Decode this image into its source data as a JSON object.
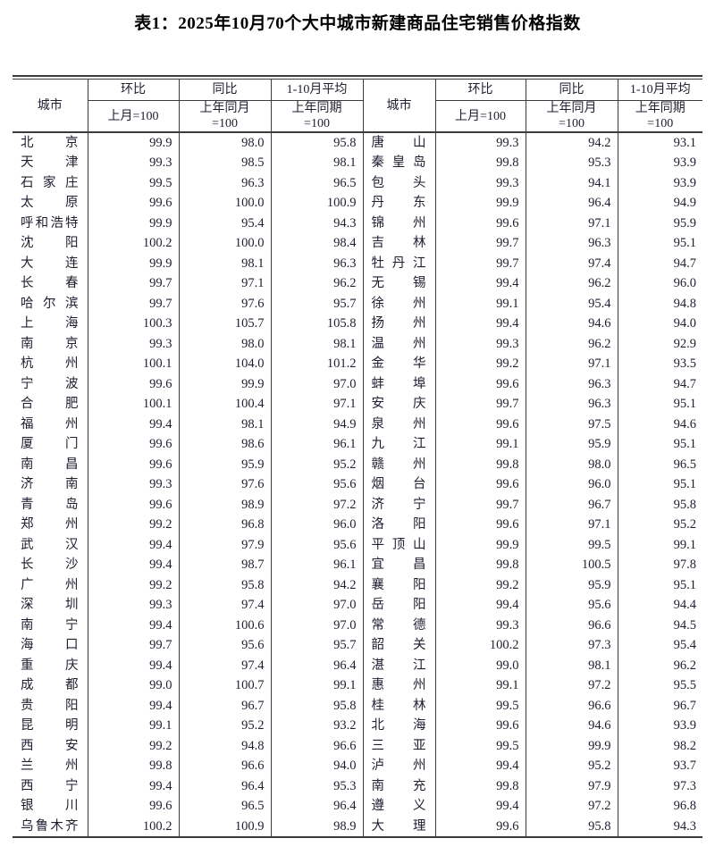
{
  "title": "表1：2025年10月70个大中城市新建商品住宅销售价格指数",
  "columns": {
    "city": "城市",
    "mom": {
      "top": "环比",
      "base": "上月=100"
    },
    "yoy": {
      "top": "同比",
      "base": "上年同月\n=100"
    },
    "avg": {
      "top": "1-10月平均",
      "base": "上年同期\n=100"
    }
  },
  "rows": [
    {
      "left": {
        "city": "北京",
        "mom": "99.9",
        "yoy": "98.0",
        "avg": "95.8"
      },
      "right": {
        "city": "唐山",
        "mom": "99.3",
        "yoy": "94.2",
        "avg": "93.1"
      }
    },
    {
      "left": {
        "city": "天津",
        "mom": "99.3",
        "yoy": "98.5",
        "avg": "98.1"
      },
      "right": {
        "city": "秦皇岛",
        "mom": "99.8",
        "yoy": "95.3",
        "avg": "93.9"
      }
    },
    {
      "left": {
        "city": "石家庄",
        "mom": "99.5",
        "yoy": "96.3",
        "avg": "96.5"
      },
      "right": {
        "city": "包头",
        "mom": "99.3",
        "yoy": "94.1",
        "avg": "93.9"
      }
    },
    {
      "left": {
        "city": "太原",
        "mom": "99.6",
        "yoy": "100.0",
        "avg": "100.9"
      },
      "right": {
        "city": "丹东",
        "mom": "99.9",
        "yoy": "96.4",
        "avg": "94.9"
      }
    },
    {
      "left": {
        "city": "呼和浩特",
        "mom": "99.9",
        "yoy": "95.4",
        "avg": "94.3"
      },
      "right": {
        "city": "锦州",
        "mom": "99.6",
        "yoy": "97.1",
        "avg": "95.9"
      }
    },
    {
      "left": {
        "city": "沈阳",
        "mom": "100.2",
        "yoy": "100.0",
        "avg": "98.4"
      },
      "right": {
        "city": "吉林",
        "mom": "99.7",
        "yoy": "96.3",
        "avg": "95.1"
      }
    },
    {
      "left": {
        "city": "大连",
        "mom": "99.9",
        "yoy": "98.1",
        "avg": "96.3"
      },
      "right": {
        "city": "牡丹江",
        "mom": "99.7",
        "yoy": "97.4",
        "avg": "94.7"
      }
    },
    {
      "left": {
        "city": "长春",
        "mom": "99.7",
        "yoy": "97.1",
        "avg": "96.2"
      },
      "right": {
        "city": "无锡",
        "mom": "99.4",
        "yoy": "96.2",
        "avg": "96.0"
      }
    },
    {
      "left": {
        "city": "哈尔滨",
        "mom": "99.7",
        "yoy": "97.6",
        "avg": "95.7"
      },
      "right": {
        "city": "徐州",
        "mom": "99.1",
        "yoy": "95.4",
        "avg": "94.8"
      }
    },
    {
      "left": {
        "city": "上海",
        "mom": "100.3",
        "yoy": "105.7",
        "avg": "105.8"
      },
      "right": {
        "city": "扬州",
        "mom": "99.4",
        "yoy": "94.6",
        "avg": "94.0"
      }
    },
    {
      "left": {
        "city": "南京",
        "mom": "99.3",
        "yoy": "98.0",
        "avg": "98.1"
      },
      "right": {
        "city": "温州",
        "mom": "99.3",
        "yoy": "96.2",
        "avg": "92.9"
      }
    },
    {
      "left": {
        "city": "杭州",
        "mom": "100.1",
        "yoy": "104.0",
        "avg": "101.2"
      },
      "right": {
        "city": "金华",
        "mom": "99.2",
        "yoy": "97.1",
        "avg": "93.5"
      }
    },
    {
      "left": {
        "city": "宁波",
        "mom": "99.6",
        "yoy": "99.9",
        "avg": "97.0"
      },
      "right": {
        "city": "蚌埠",
        "mom": "99.6",
        "yoy": "96.3",
        "avg": "94.7"
      }
    },
    {
      "left": {
        "city": "合肥",
        "mom": "100.1",
        "yoy": "100.4",
        "avg": "97.1"
      },
      "right": {
        "city": "安庆",
        "mom": "99.7",
        "yoy": "96.3",
        "avg": "95.1"
      }
    },
    {
      "left": {
        "city": "福州",
        "mom": "99.4",
        "yoy": "98.1",
        "avg": "94.9"
      },
      "right": {
        "city": "泉州",
        "mom": "99.6",
        "yoy": "97.5",
        "avg": "94.6"
      }
    },
    {
      "left": {
        "city": "厦门",
        "mom": "99.6",
        "yoy": "98.6",
        "avg": "96.1"
      },
      "right": {
        "city": "九江",
        "mom": "99.1",
        "yoy": "95.9",
        "avg": "95.1"
      }
    },
    {
      "left": {
        "city": "南昌",
        "mom": "99.6",
        "yoy": "95.9",
        "avg": "95.2"
      },
      "right": {
        "city": "赣州",
        "mom": "99.8",
        "yoy": "98.0",
        "avg": "96.5"
      }
    },
    {
      "left": {
        "city": "济南",
        "mom": "99.3",
        "yoy": "97.6",
        "avg": "95.6"
      },
      "right": {
        "city": "烟台",
        "mom": "99.6",
        "yoy": "96.0",
        "avg": "95.1"
      }
    },
    {
      "left": {
        "city": "青岛",
        "mom": "99.6",
        "yoy": "98.9",
        "avg": "97.2"
      },
      "right": {
        "city": "济宁",
        "mom": "99.7",
        "yoy": "96.7",
        "avg": "95.8"
      }
    },
    {
      "left": {
        "city": "郑州",
        "mom": "99.2",
        "yoy": "96.8",
        "avg": "96.0"
      },
      "right": {
        "city": "洛阳",
        "mom": "99.6",
        "yoy": "97.1",
        "avg": "95.2"
      }
    },
    {
      "left": {
        "city": "武汉",
        "mom": "99.4",
        "yoy": "97.9",
        "avg": "95.6"
      },
      "right": {
        "city": "平顶山",
        "mom": "99.9",
        "yoy": "99.5",
        "avg": "99.1"
      }
    },
    {
      "left": {
        "city": "长沙",
        "mom": "99.4",
        "yoy": "98.7",
        "avg": "96.1"
      },
      "right": {
        "city": "宜昌",
        "mom": "99.8",
        "yoy": "100.5",
        "avg": "97.8"
      }
    },
    {
      "left": {
        "city": "广州",
        "mom": "99.2",
        "yoy": "95.8",
        "avg": "94.2"
      },
      "right": {
        "city": "襄阳",
        "mom": "99.2",
        "yoy": "95.9",
        "avg": "95.1"
      }
    },
    {
      "left": {
        "city": "深圳",
        "mom": "99.3",
        "yoy": "97.4",
        "avg": "97.0"
      },
      "right": {
        "city": "岳阳",
        "mom": "99.4",
        "yoy": "95.6",
        "avg": "94.4"
      }
    },
    {
      "left": {
        "city": "南宁",
        "mom": "99.4",
        "yoy": "100.6",
        "avg": "97.0"
      },
      "right": {
        "city": "常德",
        "mom": "99.3",
        "yoy": "96.6",
        "avg": "94.5"
      }
    },
    {
      "left": {
        "city": "海口",
        "mom": "99.7",
        "yoy": "95.6",
        "avg": "95.7"
      },
      "right": {
        "city": "韶关",
        "mom": "100.2",
        "yoy": "97.3",
        "avg": "95.4"
      }
    },
    {
      "left": {
        "city": "重庆",
        "mom": "99.4",
        "yoy": "97.4",
        "avg": "96.4"
      },
      "right": {
        "city": "湛江",
        "mom": "99.0",
        "yoy": "98.1",
        "avg": "96.2"
      }
    },
    {
      "left": {
        "city": "成都",
        "mom": "99.0",
        "yoy": "100.7",
        "avg": "99.1"
      },
      "right": {
        "city": "惠州",
        "mom": "99.1",
        "yoy": "97.2",
        "avg": "95.5"
      }
    },
    {
      "left": {
        "city": "贵阳",
        "mom": "99.4",
        "yoy": "96.7",
        "avg": "95.8"
      },
      "right": {
        "city": "桂林",
        "mom": "99.5",
        "yoy": "96.6",
        "avg": "96.7"
      }
    },
    {
      "left": {
        "city": "昆明",
        "mom": "99.1",
        "yoy": "95.2",
        "avg": "93.2"
      },
      "right": {
        "city": "北海",
        "mom": "99.6",
        "yoy": "94.6",
        "avg": "93.9"
      }
    },
    {
      "left": {
        "city": "西安",
        "mom": "99.2",
        "yoy": "94.8",
        "avg": "96.6"
      },
      "right": {
        "city": "三亚",
        "mom": "99.5",
        "yoy": "99.9",
        "avg": "98.2"
      }
    },
    {
      "left": {
        "city": "兰州",
        "mom": "99.8",
        "yoy": "96.6",
        "avg": "94.0"
      },
      "right": {
        "city": "泸州",
        "mom": "99.4",
        "yoy": "95.2",
        "avg": "93.7"
      }
    },
    {
      "left": {
        "city": "西宁",
        "mom": "99.4",
        "yoy": "96.4",
        "avg": "95.3"
      },
      "right": {
        "city": "南充",
        "mom": "99.8",
        "yoy": "97.9",
        "avg": "97.3"
      }
    },
    {
      "left": {
        "city": "银川",
        "mom": "99.6",
        "yoy": "96.5",
        "avg": "96.4"
      },
      "right": {
        "city": "遵义",
        "mom": "99.4",
        "yoy": "97.2",
        "avg": "96.8"
      }
    },
    {
      "left": {
        "city": "乌鲁木齐",
        "mom": "100.2",
        "yoy": "100.9",
        "avg": "98.9"
      },
      "right": {
        "city": "大理",
        "mom": "99.6",
        "yoy": "95.8",
        "avg": "94.3"
      }
    }
  ]
}
